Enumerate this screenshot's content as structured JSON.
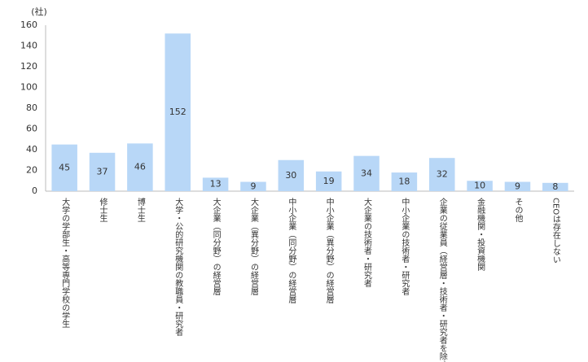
{
  "chart_data": {
    "type": "bar",
    "y_label": "(社)",
    "categories": [
      "大学の学部生・高等専門学校の学生",
      "修士生",
      "博士生",
      "大学・公的研究機関の教職員・研究者",
      "大企業（同分野）の経営層",
      "大企業（異分野）の経営層",
      "中小企業（同分野）の経営層",
      "中小企業（異分野）の経営層",
      "大企業の技術者・研究者",
      "中小企業の技術者・研究者",
      "企業の従業員（経営層・技術者・研究者を除く）",
      "金融機関・投資機関",
      "その他",
      "CEOは存在しない"
    ],
    "values": [
      45,
      37,
      46,
      152,
      13,
      9,
      30,
      19,
      34,
      18,
      32,
      10,
      9,
      8
    ],
    "color": "#b8d7f7",
    "ylim": [
      0,
      160
    ],
    "yticks": [
      0,
      20,
      40,
      60,
      80,
      100,
      120,
      140,
      160
    ],
    "grid": false
  }
}
